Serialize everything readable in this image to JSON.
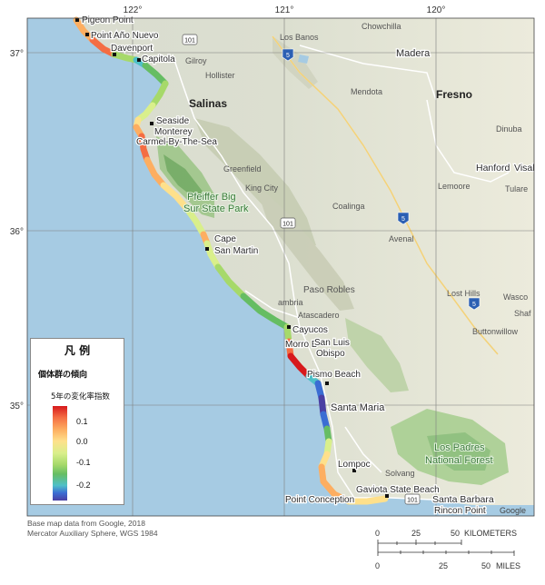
{
  "map": {
    "labels": {
      "pigeon_point": "Pigeon Point",
      "point_ano_nuevo": "Point Año Nuevo",
      "davenport": "Davenport",
      "capitola": "Capitola",
      "gilroy": "Gilroy",
      "hollister": "Hollister",
      "salinas": "Salinas",
      "seaside": "Seaside",
      "monterey": "Monterey",
      "carmel": "Carmel-By-The-Sea",
      "greenfield": "Greenfield",
      "king_city": "King City",
      "pfeiffer": "Pfeiffer Big",
      "sur_state_park": "Sur State Park",
      "cape": "Cape",
      "san_martin": "San Martin",
      "los_banos": "Los Banos",
      "chowchilla": "Chowchilla",
      "madera": "Madera",
      "mendota": "Mendota",
      "fresno": "Fresno",
      "dinuba": "Dinuba",
      "hanford": "Hanford",
      "visalia": "Visal",
      "lemoore": "Lemoore",
      "tulare": "Tulare",
      "coalinga": "Coalinga",
      "avenal": "Avenal",
      "lost_hills": "Lost Hills",
      "wasco": "Wasco",
      "shafter": "Shaf",
      "buttonwillow": "Buttonwillow",
      "paso_robles": "Paso Robles",
      "atascadero": "Atascadero",
      "cayucos": "Cayucos",
      "morro_bay": "Morro B",
      "san_luis_obispo_1": "San Luis",
      "san_luis_obispo_2": "Obispo",
      "pismo_beach": "Pismo Beach",
      "santa_maria": "Santa Maria",
      "lompoc": "Lompoc",
      "solvang": "Solvang",
      "los_padres_1": "Los Padres",
      "los_padres_2": "National Forest",
      "gaviota": "Gaviota State Beach",
      "point_conception": "Point Conception",
      "santa_barbara": "Santa Barbara",
      "rincon_point": "Rincon Point",
      "google": "Google",
      "cambria": "ambria"
    },
    "highway_shields": {
      "h101_north": "101",
      "i5_north": "5",
      "h101_mid": "101",
      "i5_mid": "5",
      "i5_south": "5",
      "h101_south": "101"
    },
    "longitude_ticks": [
      "122°",
      "121°",
      "120°"
    ],
    "latitude_ticks": [
      "37°",
      "36°",
      "35°"
    ]
  },
  "legend": {
    "title": "凡 例",
    "subtitle": "個体群の傾向",
    "index_label": "5年の変化率指数",
    "ticks": [
      "0.1",
      "0.0",
      "-0.1",
      "-0.2"
    ],
    "color_ramp": [
      "#d7191c",
      "#f46d43",
      "#fdae61",
      "#fee08b",
      "#d9ef8b",
      "#a6d96a",
      "#66bd63",
      "#4fc0c8",
      "#3b6dd3",
      "#4b3fa3"
    ]
  },
  "credits": {
    "line1": "Base map data from Google, 2018",
    "line2": "Mercator Auxiliary Sphere, WGS 1984"
  },
  "scale_bar": {
    "km_ticks": [
      "0",
      "25",
      "50"
    ],
    "km_unit": "KILOMETERS",
    "mi_ticks": [
      "0",
      "25",
      "50"
    ],
    "mi_unit": "MILES"
  }
}
